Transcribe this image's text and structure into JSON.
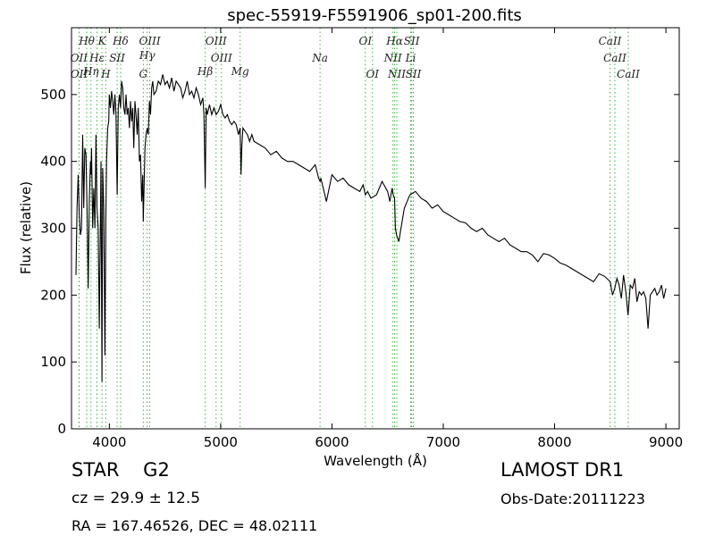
{
  "chart_data": {
    "type": "line",
    "title": "spec-55919-F5591906_sp01-200.fits",
    "xlabel": "Wavelength (Å)",
    "ylabel": "Flux (relative)",
    "xlim": [
      3660,
      9120
    ],
    "ylim": [
      0,
      600
    ],
    "xticks": [
      4000,
      5000,
      6000,
      7000,
      8000,
      9000
    ],
    "yticks": [
      0,
      100,
      200,
      300,
      400,
      500
    ],
    "grid": false,
    "series": [
      {
        "color": "#000000",
        "x": [
          3700,
          3710,
          3720,
          3730,
          3740,
          3750,
          3760,
          3770,
          3780,
          3790,
          3800,
          3810,
          3820,
          3830,
          3835,
          3840,
          3850,
          3860,
          3870,
          3880,
          3889,
          3900,
          3910,
          3920,
          3925,
          3934,
          3940,
          3950,
          3960,
          3968,
          3975,
          3985,
          3995,
          4000,
          4010,
          4020,
          4030,
          4040,
          4050,
          4060,
          4070,
          4080,
          4090,
          4101,
          4110,
          4120,
          4130,
          4140,
          4150,
          4160,
          4170,
          4180,
          4190,
          4200,
          4210,
          4220,
          4230,
          4240,
          4250,
          4260,
          4270,
          4280,
          4290,
          4300,
          4305,
          4310,
          4320,
          4330,
          4340,
          4350,
          4360,
          4370,
          4380,
          4390,
          4400,
          4420,
          4440,
          4460,
          4480,
          4500,
          4520,
          4540,
          4560,
          4580,
          4600,
          4620,
          4640,
          4660,
          4680,
          4700,
          4720,
          4740,
          4760,
          4780,
          4800,
          4820,
          4840,
          4850,
          4861,
          4870,
          4880,
          4900,
          4920,
          4940,
          4960,
          4980,
          5000,
          5020,
          5040,
          5060,
          5080,
          5100,
          5120,
          5140,
          5160,
          5175,
          5183,
          5190,
          5200,
          5220,
          5240,
          5260,
          5280,
          5300,
          5350,
          5400,
          5450,
          5500,
          5550,
          5600,
          5650,
          5700,
          5750,
          5800,
          5850,
          5880,
          5893,
          5900,
          5950,
          6000,
          6050,
          6100,
          6150,
          6200,
          6250,
          6280,
          6300,
          6320,
          6350,
          6400,
          6450,
          6500,
          6520,
          6540,
          6550,
          6563,
          6570,
          6580,
          6600,
          6650,
          6700,
          6750,
          6800,
          6850,
          6900,
          6950,
          7000,
          7050,
          7100,
          7150,
          7200,
          7250,
          7300,
          7350,
          7400,
          7450,
          7500,
          7550,
          7600,
          7650,
          7700,
          7750,
          7800,
          7850,
          7900,
          7950,
          8000,
          8050,
          8100,
          8150,
          8200,
          8250,
          8300,
          8350,
          8400,
          8450,
          8500,
          8520,
          8540,
          8560,
          8580,
          8600,
          8620,
          8640,
          8660,
          8680,
          8700,
          8720,
          8740,
          8760,
          8780,
          8800,
          8820,
          8840,
          8860,
          8880,
          8900,
          8920,
          8940,
          8960,
          8980,
          9000
        ],
        "y": [
          230,
          330,
          380,
          320,
          290,
          300,
          440,
          330,
          420,
          410,
          330,
          210,
          340,
          400,
          380,
          420,
          300,
          360,
          300,
          440,
          330,
          300,
          150,
          320,
          400,
          70,
          390,
          330,
          110,
          310,
          400,
          450,
          460,
          500,
          480,
          505,
          490,
          470,
          500,
          470,
          350,
          480,
          500,
          480,
          520,
          510,
          480,
          470,
          500,
          470,
          480,
          450,
          490,
          460,
          480,
          420,
          490,
          470,
          440,
          480,
          400,
          410,
          340,
          380,
          310,
          350,
          420,
          440,
          450,
          440,
          490,
          470,
          510,
          520,
          500,
          505,
          520,
          515,
          530,
          515,
          520,
          510,
          525,
          505,
          520,
          515,
          510,
          495,
          505,
          520,
          500,
          505,
          495,
          510,
          500,
          485,
          495,
          470,
          360,
          480,
          470,
          485,
          470,
          480,
          470,
          475,
          485,
          470,
          465,
          470,
          460,
          455,
          460,
          455,
          440,
          450,
          380,
          420,
          450,
          445,
          440,
          430,
          440,
          430,
          425,
          420,
          410,
          415,
          405,
          400,
          400,
          395,
          390,
          385,
          395,
          375,
          370,
          375,
          340,
          380,
          370,
          375,
          365,
          360,
          355,
          365,
          350,
          355,
          345,
          350,
          370,
          355,
          340,
          360,
          350,
          345,
          300,
          290,
          280,
          330,
          350,
          355,
          345,
          340,
          330,
          335,
          325,
          320,
          315,
          310,
          308,
          300,
          295,
          300,
          290,
          285,
          280,
          285,
          275,
          270,
          265,
          265,
          260,
          250,
          262,
          260,
          255,
          248,
          245,
          240,
          235,
          230,
          225,
          220,
          232,
          228,
          220,
          200,
          210,
          225,
          215,
          195,
          230,
          205,
          170,
          215,
          210,
          225,
          190,
          205,
          200,
          205,
          195,
          150,
          200,
          205,
          210,
          200,
          205,
          215,
          195,
          210
        ]
      }
    ],
    "line_labels": [
      {
        "text": "Hθ",
        "row": 1,
        "wl": 3797
      },
      {
        "text": "K",
        "row": 1,
        "wl": 3934
      },
      {
        "text": "Hδ",
        "row": 1,
        "wl": 4101
      },
      {
        "text": "OIII",
        "row": 1,
        "wl": 4363
      },
      {
        "text": "OIII",
        "row": 1,
        "wl": 4959
      },
      {
        "text": "OI",
        "row": 1,
        "wl": 6300
      },
      {
        "text": "Hα",
        "row": 1,
        "wl": 6563
      },
      {
        "text": "SII",
        "row": 1,
        "wl": 6716
      },
      {
        "text": "CaII",
        "row": 1,
        "wl": 8498
      },
      {
        "text": "Hγ",
        "row": 2,
        "wl": 4340
      },
      {
        "text": "OII",
        "row": 3,
        "wl": 3727
      },
      {
        "text": "Hε",
        "row": 3,
        "wl": 3889
      },
      {
        "text": "SII",
        "row": 3,
        "wl": 4070
      },
      {
        "text": "OIII",
        "row": 3,
        "wl": 5007
      },
      {
        "text": "Na",
        "row": 3,
        "wl": 5893
      },
      {
        "text": "NII",
        "row": 3,
        "wl": 6548
      },
      {
        "text": "Li",
        "row": 3,
        "wl": 6707
      },
      {
        "text": "CaII",
        "row": 3,
        "wl": 8542
      },
      {
        "text": "Hη",
        "row": 4,
        "wl": 3835
      },
      {
        "text": "Mg",
        "row": 4,
        "wl": 5175
      },
      {
        "text": "Hβ",
        "row": 4,
        "wl": 4861
      },
      {
        "text": "OII",
        "row": 5,
        "wl": 3729
      },
      {
        "text": "H",
        "row": 5,
        "wl": 3968
      },
      {
        "text": "G",
        "row": 5,
        "wl": 4305
      },
      {
        "text": "OI",
        "row": 5,
        "wl": 6364
      },
      {
        "text": "NII",
        "row": 5,
        "wl": 6583
      },
      {
        "text": "SII",
        "row": 5,
        "wl": 6731
      },
      {
        "text": "CaII",
        "row": 5,
        "wl": 8662
      }
    ],
    "line_markers_wl": [
      3727,
      3729,
      3797,
      3835,
      3889,
      3934,
      3968,
      4070,
      4101,
      4305,
      4340,
      4363,
      4861,
      4959,
      5007,
      5175,
      5893,
      6300,
      6364,
      6548,
      6563,
      6583,
      6707,
      6716,
      6731,
      8498,
      8542,
      8662
    ],
    "colors": {
      "spectrum": "#000000",
      "marker": "#3cb33c"
    }
  },
  "footer": {
    "class_label": "STAR    G2",
    "survey": "LAMOST DR1",
    "redshift": "cz = 29.9 ± 12.5",
    "obs_date": "Obs-Date:20111223",
    "coords": "RA = 167.46526, DEC = 48.02111"
  }
}
